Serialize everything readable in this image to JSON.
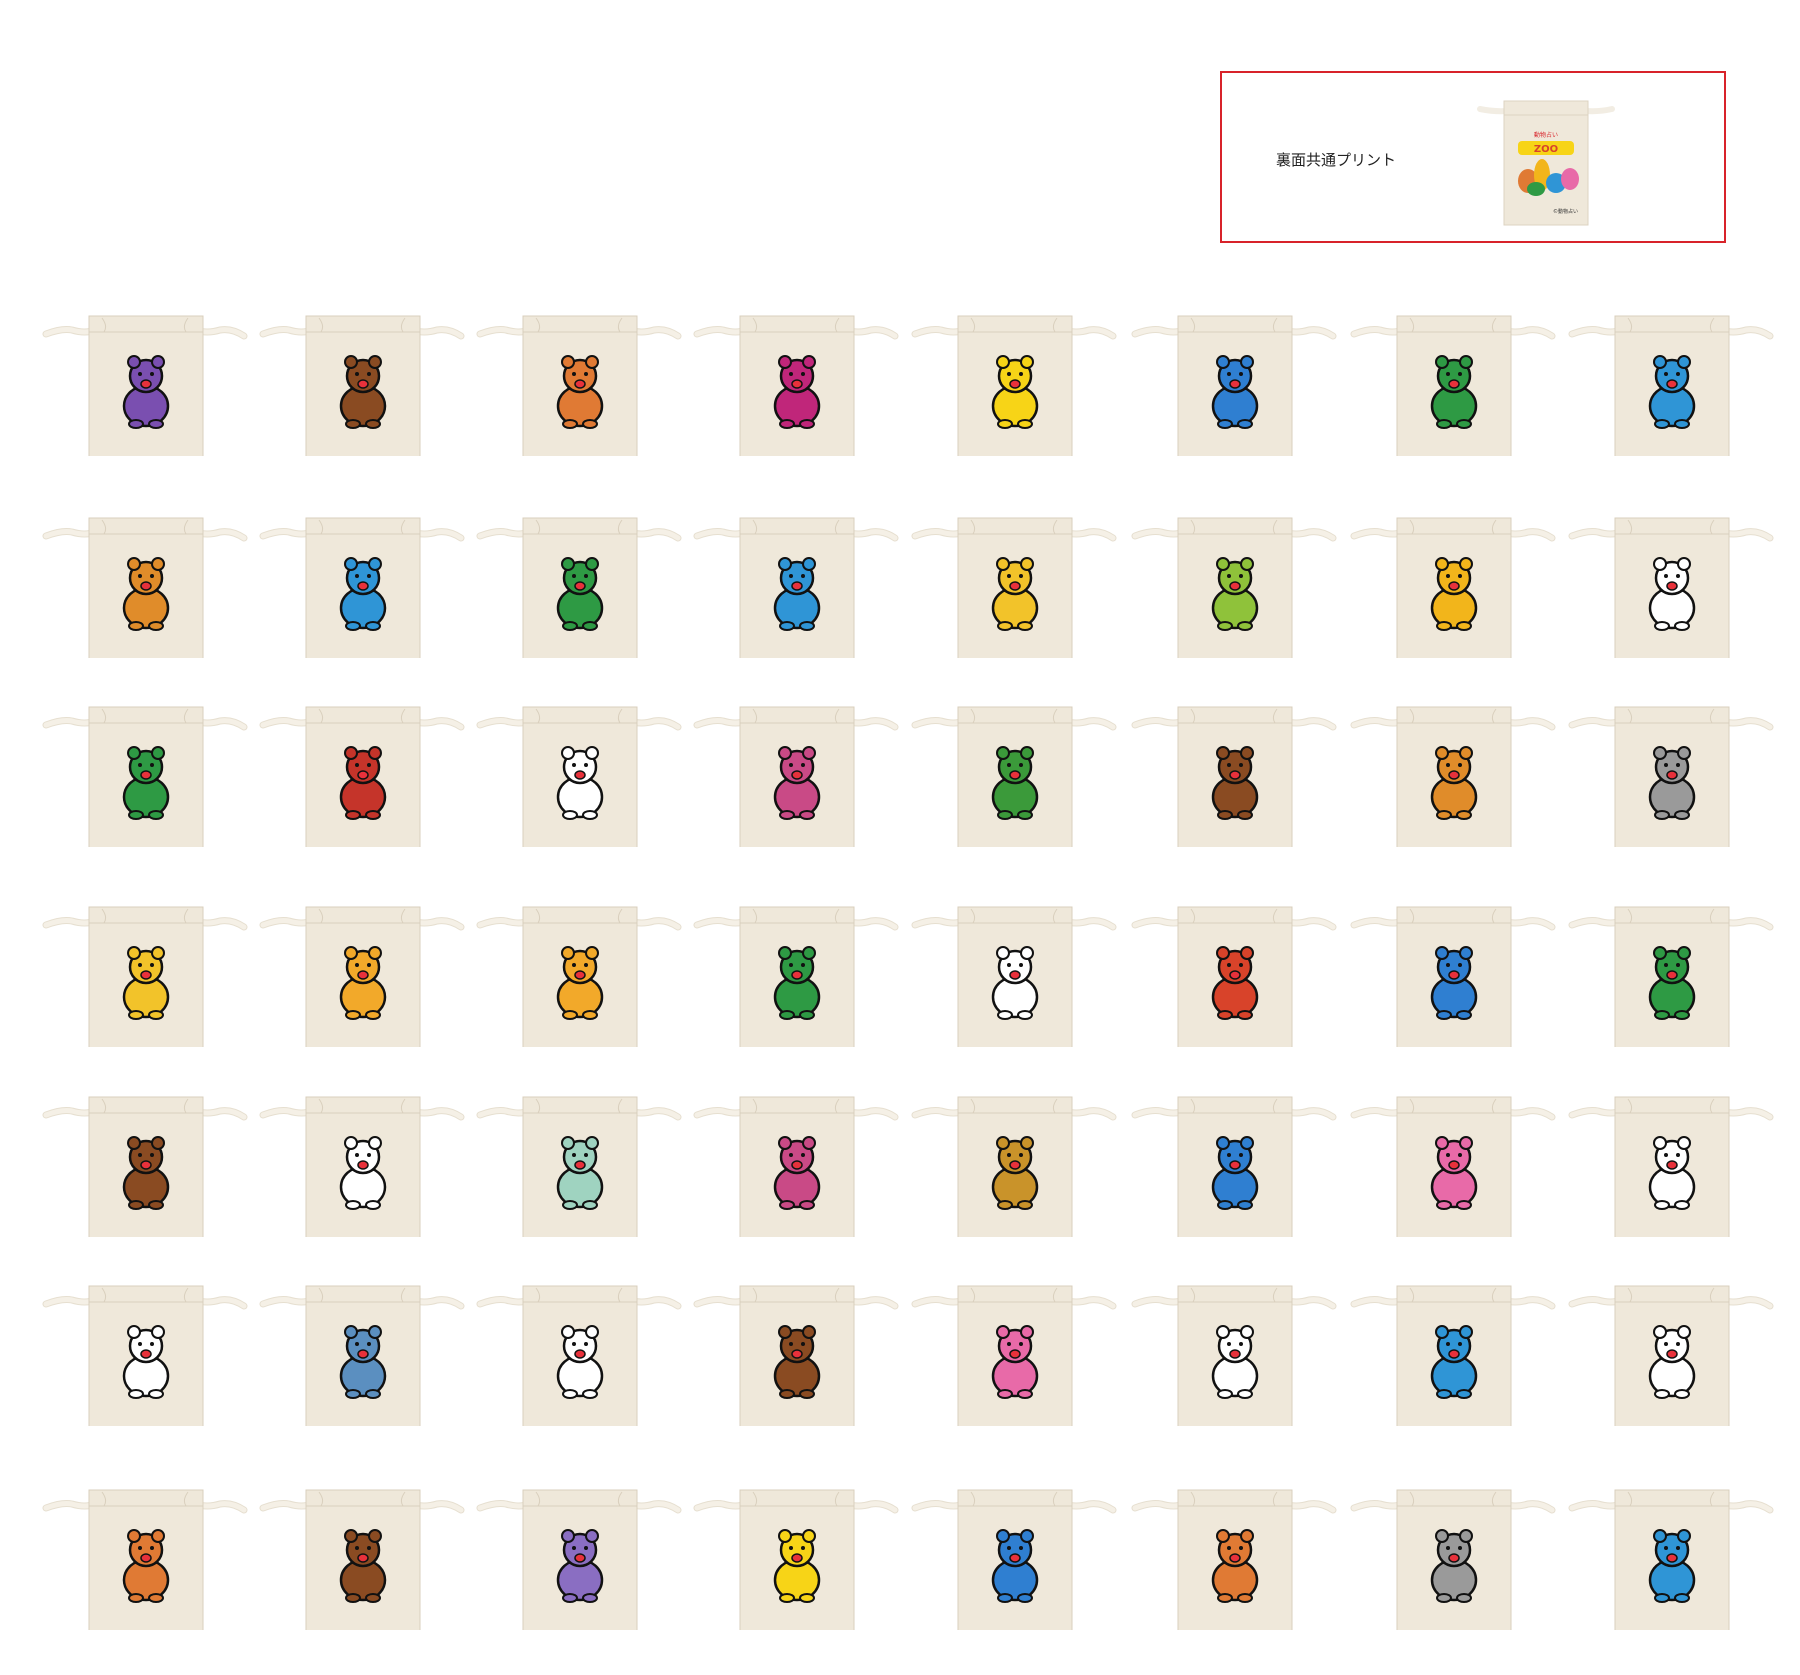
{
  "callout": {
    "label": "裏面共通プリント",
    "back_print": {
      "small_text": "動物占い",
      "logo_text": "ZOO",
      "copyright": "©動物占い"
    }
  },
  "colors": {
    "bag_fabric": "#efe8da",
    "bag_cord": "#f5f0e6",
    "callout_border": "#d8232a"
  },
  "grid": {
    "columns": 8,
    "rows": 7,
    "items": [
      {
        "animal": "bat-icon",
        "color": "#7a4fb0"
      },
      {
        "animal": "bear-icon",
        "color": "#8a4b22"
      },
      {
        "animal": "camel-icon",
        "color": "#e07a34"
      },
      {
        "animal": "cat-icon",
        "color": "#c0267a"
      },
      {
        "animal": "chick-icon",
        "color": "#f7d417"
      },
      {
        "animal": "cow-icon",
        "color": "#2f7fd1"
      },
      {
        "animal": "crocodile-icon",
        "color": "#2e9a44"
      },
      {
        "animal": "deer-icon",
        "color": "#2f95d6"
      },
      {
        "animal": "dog-icon",
        "color": "#e08c2a"
      },
      {
        "animal": "duck-icon",
        "color": "#2f95d6"
      },
      {
        "animal": "eagle-icon",
        "color": "#2e9a44"
      },
      {
        "animal": "elephant-icon",
        "color": "#2f95d6"
      },
      {
        "animal": "fox-icon",
        "color": "#f2c32a"
      },
      {
        "animal": "seal-icon",
        "color": "#8fc23a"
      },
      {
        "animal": "giraffe-icon",
        "color": "#f2b51b"
      },
      {
        "animal": "goat-icon",
        "color": "#ffffff"
      },
      {
        "animal": "gorilla-icon",
        "color": "#2e9a44"
      },
      {
        "animal": "hawk-icon",
        "color": "#c5342a"
      },
      {
        "animal": "hen-icon",
        "color": "#ffffff"
      },
      {
        "animal": "hippo-icon",
        "color": "#c94a86"
      },
      {
        "animal": "owl-icon",
        "color": "#3b9a3a"
      },
      {
        "animal": "horse-icon",
        "color": "#8a4b22"
      },
      {
        "animal": "kangaroo-icon",
        "color": "#e08c2a"
      },
      {
        "animal": "koala-icon",
        "color": "#9a9a9a"
      },
      {
        "animal": "leopard-icon",
        "color": "#f2c32a"
      },
      {
        "animal": "lion-icon",
        "color": "#f2a92a"
      },
      {
        "animal": "lynx-icon",
        "color": "#f2a92a"
      },
      {
        "animal": "parrot-icon",
        "color": "#2e9a44"
      },
      {
        "animal": "pelican-icon",
        "color": "#ffffff"
      },
      {
        "animal": "monkey-icon",
        "color": "#d8432a"
      },
      {
        "animal": "sea-creatures-icon",
        "color": "#2f7fd1"
      },
      {
        "animal": "mouse-icon",
        "color": "#2e9a44"
      },
      {
        "animal": "ox-icon",
        "color": "#8a4b22"
      },
      {
        "animal": "panda-icon",
        "color": "#ffffff"
      },
      {
        "animal": "cockatoo-icon",
        "color": "#9fd3c0"
      },
      {
        "animal": "peacock-icon",
        "color": "#c94a86"
      },
      {
        "animal": "mallard-icon",
        "color": "#c9932a"
      },
      {
        "animal": "penguin-icon",
        "color": "#2f7fd1"
      },
      {
        "animal": "pig-icon",
        "color": "#e86aa8"
      },
      {
        "animal": "dove-icon",
        "color": "#ffffff"
      },
      {
        "animal": "polar-bear-icon",
        "color": "#ffffff"
      },
      {
        "animal": "porcupine-icon",
        "color": "#5b8fc0"
      },
      {
        "animal": "rabbit-icon",
        "color": "#ffffff"
      },
      {
        "animal": "raccoon-icon",
        "color": "#8a4b22"
      },
      {
        "animal": "rhino-icon",
        "color": "#e86aa8"
      },
      {
        "animal": "rooster-icon",
        "color": "#ffffff"
      },
      {
        "animal": "whale-seal-icon",
        "color": "#2f95d6"
      },
      {
        "animal": "sheep-icon",
        "color": "#ffffff"
      },
      {
        "animal": "robin-icon",
        "color": "#e07a34"
      },
      {
        "animal": "squirrel-icon",
        "color": "#8a4b22"
      },
      {
        "animal": "tapir-icon",
        "color": "#8a6ec2"
      },
      {
        "animal": "tiger-icon",
        "color": "#f7d417"
      },
      {
        "animal": "turtle-icon",
        "color": "#2f7fd1"
      },
      {
        "animal": "wolf-icon",
        "color": "#e07a34"
      },
      {
        "animal": "rat-icon",
        "color": "#9a9a9a"
      },
      {
        "animal": "zebra-icon",
        "color": "#2f95d6"
      }
    ]
  }
}
